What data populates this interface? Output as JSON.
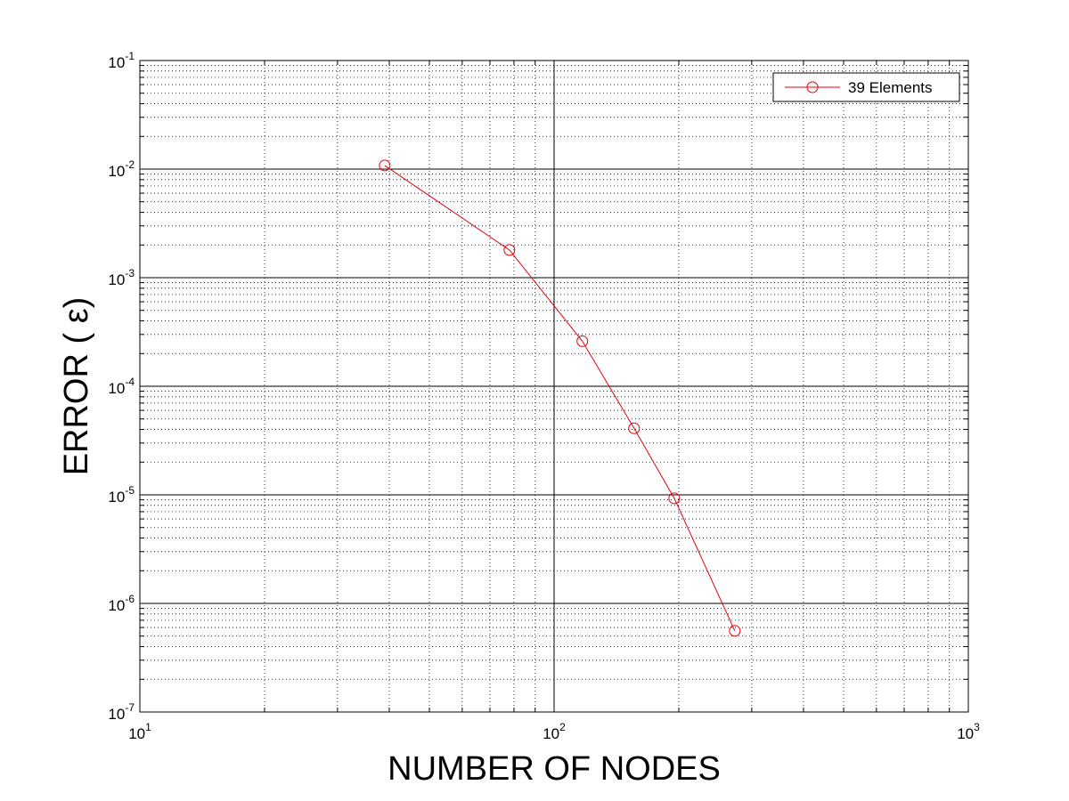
{
  "chart_data": {
    "type": "line",
    "xscale": "log",
    "yscale": "log",
    "xlim": [
      10,
      1000
    ],
    "ylim": [
      1e-07,
      0.1
    ],
    "xlabel": "NUMBER OF NODES",
    "ylabel": "ERROR ( ε)",
    "xticks": [
      {
        "base": "10",
        "exp": "1",
        "value": 10
      },
      {
        "base": "10",
        "exp": "2",
        "value": 100
      },
      {
        "base": "10",
        "exp": "3",
        "value": 1000
      }
    ],
    "yticks": [
      {
        "base": "10",
        "exp": "-1",
        "value": 0.1
      },
      {
        "base": "10",
        "exp": "-2",
        "value": 0.01
      },
      {
        "base": "10",
        "exp": "-3",
        "value": 0.001
      },
      {
        "base": "10",
        "exp": "-4",
        "value": 0.0001
      },
      {
        "base": "10",
        "exp": "-5",
        "value": 1e-05
      },
      {
        "base": "10",
        "exp": "-6",
        "value": 1e-06
      },
      {
        "base": "10",
        "exp": "-7",
        "value": 1e-07
      }
    ],
    "grid": true,
    "minor_grid": true,
    "legend_position": "top-right",
    "series": [
      {
        "name": "39 Elements",
        "color": "#e8000b",
        "marker": "circle",
        "x": [
          39,
          78,
          117,
          156,
          195,
          273
        ],
        "y": [
          0.0108,
          0.0018,
          0.00026,
          4.1e-05,
          9.3e-06,
          5.6e-07
        ]
      }
    ]
  }
}
